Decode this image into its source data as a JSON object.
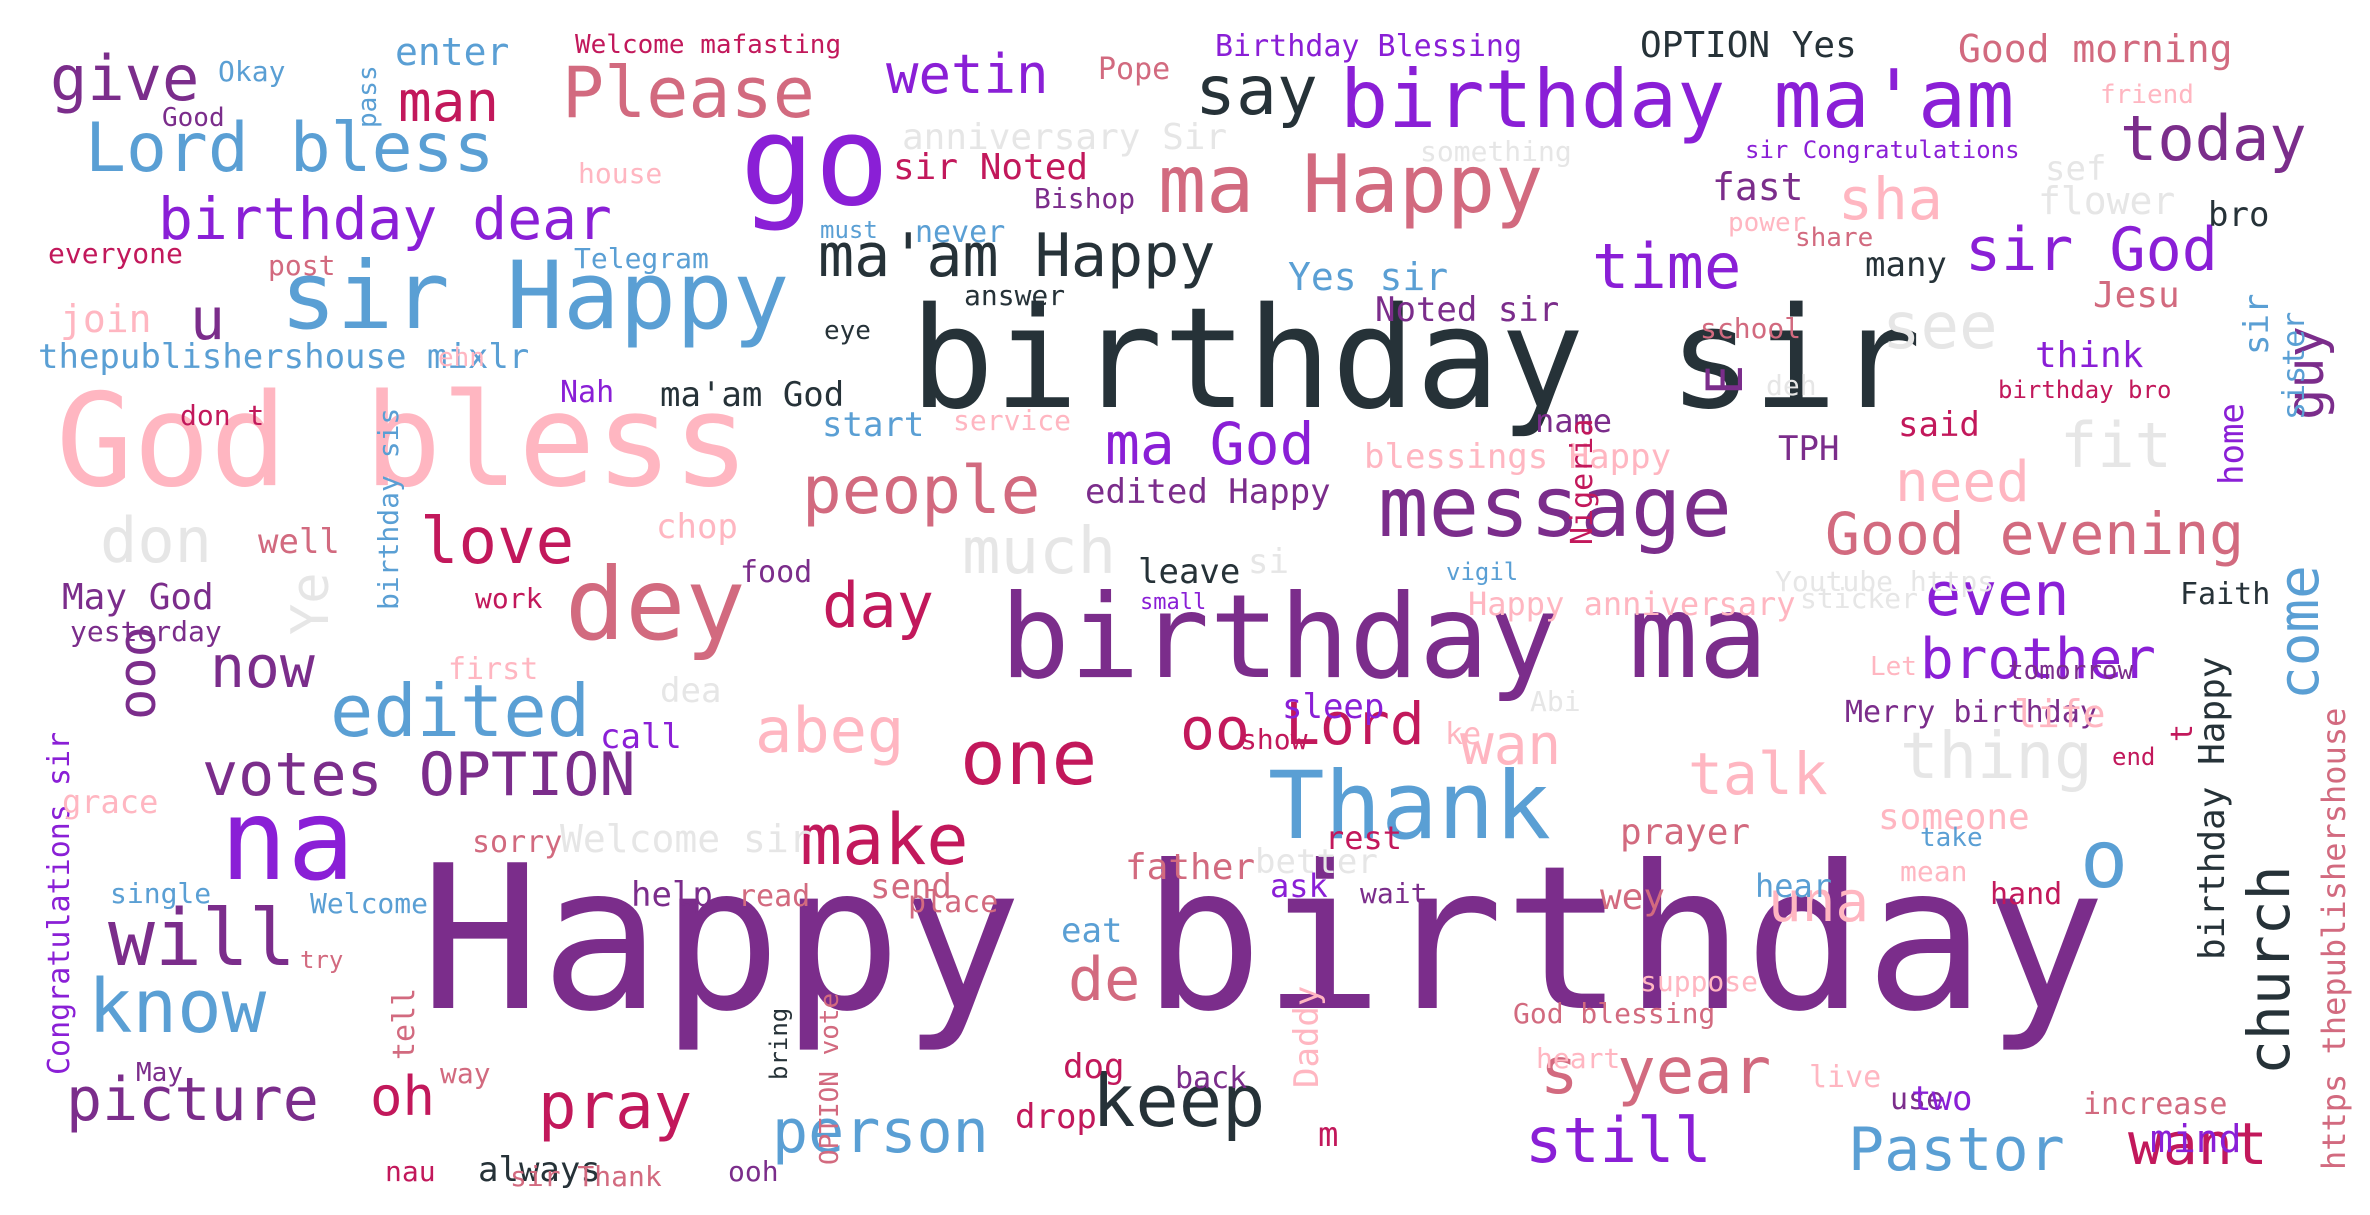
{
  "palette": {
    "purple_dark": "#7b2d8b",
    "purple": "#8a1fd6",
    "violet": "#9a22d8",
    "blue": "#5a9fd4",
    "rose": "#d26a7f",
    "crimson": "#c2185b",
    "pink_light": "#ffb6c1",
    "gray_light": "#e6e6e6",
    "charcoal": "#263238"
  },
  "words": [
    {
      "text": "Happy birthday",
      "color": "#7b2d8b"
    },
    {
      "text": "birthday sir",
      "color": "#263238"
    },
    {
      "text": "God bless",
      "color": "#ffb6c1"
    },
    {
      "text": "birthday ma",
      "color": "#7b2d8b"
    },
    {
      "text": "go",
      "color": "#8a1fd6"
    },
    {
      "text": "birthday ma'am",
      "color": "#8a1fd6"
    },
    {
      "text": "sir Happy",
      "color": "#5a9fd4"
    },
    {
      "text": "ma Happy",
      "color": "#d26a7f"
    },
    {
      "text": "message",
      "color": "#7b2d8b"
    },
    {
      "text": "Thank",
      "color": "#5a9fd4"
    },
    {
      "text": "na",
      "color": "#8a1fd6"
    },
    {
      "text": "dey",
      "color": "#d26a7f"
    },
    {
      "text": "Please",
      "color": "#d26a7f"
    },
    {
      "text": "Lord bless",
      "color": "#5a9fd4"
    },
    {
      "text": "birthday dear",
      "color": "#8a1fd6"
    },
    {
      "text": "ma'am Happy",
      "color": "#263238"
    },
    {
      "text": "edited",
      "color": "#5a9fd4"
    },
    {
      "text": "votes OPTION",
      "color": "#7b2d8b"
    },
    {
      "text": "keep",
      "color": "#263238"
    },
    {
      "text": "make",
      "color": "#c2185b"
    },
    {
      "text": "one",
      "color": "#c2185b"
    },
    {
      "text": "people",
      "color": "#d26a7f"
    },
    {
      "text": "will",
      "color": "#7b2d8b"
    },
    {
      "text": "know",
      "color": "#5a9fd4"
    },
    {
      "text": "picture",
      "color": "#7b2d8b"
    },
    {
      "text": "person",
      "color": "#5a9fd4"
    },
    {
      "text": "Pastor",
      "color": "#5a9fd4"
    },
    {
      "text": "s year",
      "color": "#d26a7f"
    },
    {
      "text": "still",
      "color": "#8a1fd6"
    },
    {
      "text": "Good evening",
      "color": "#d26a7f"
    },
    {
      "text": "church",
      "color": "#263238"
    },
    {
      "text": "come",
      "color": "#5a9fd4"
    },
    {
      "text": "sir God",
      "color": "#8a1fd6"
    },
    {
      "text": "today",
      "color": "#7b2d8b"
    },
    {
      "text": "wetin",
      "color": "#8a1fd6"
    },
    {
      "text": "say",
      "color": "#263238"
    },
    {
      "text": "give",
      "color": "#7b2d8b"
    },
    {
      "text": "man",
      "color": "#c2185b"
    },
    {
      "text": "time",
      "color": "#8a1fd6"
    },
    {
      "text": "ma God",
      "color": "#8a1fd6"
    },
    {
      "text": "love",
      "color": "#c2185b"
    },
    {
      "text": "day",
      "color": "#c2185b"
    },
    {
      "text": "now",
      "color": "#7b2d8b"
    },
    {
      "text": "abeg",
      "color": "#ffb6c1"
    },
    {
      "text": "oo",
      "color": "#c2185b"
    },
    {
      "text": "Lord",
      "color": "#c2185b"
    },
    {
      "text": "talk",
      "color": "#ffb6c1"
    },
    {
      "text": "thing",
      "color": "#e6e6e6"
    },
    {
      "text": "brother",
      "color": "#8a1fd6"
    },
    {
      "text": "even",
      "color": "#8a1fd6"
    },
    {
      "text": "o",
      "color": "#5a9fd4"
    },
    {
      "text": "want",
      "color": "#c2185b"
    },
    {
      "text": "pray",
      "color": "#c2185b"
    },
    {
      "text": "oh",
      "color": "#c2185b"
    },
    {
      "text": "de",
      "color": "#d26a7f"
    },
    {
      "text": "una",
      "color": "#ffb6c1"
    },
    {
      "text": "wan",
      "color": "#ffb6c1"
    },
    {
      "text": "much",
      "color": "#e6e6e6"
    },
    {
      "text": "don",
      "color": "#e6e6e6"
    },
    {
      "text": "see",
      "color": "#e6e6e6"
    },
    {
      "text": "fit",
      "color": "#e6e6e6"
    },
    {
      "text": "need",
      "color": "#ffb6c1"
    },
    {
      "text": "sha",
      "color": "#ffb6c1"
    },
    {
      "text": "u",
      "color": "#7b2d8b"
    },
    {
      "text": "guy",
      "color": "#7b2d8b"
    },
    {
      "text": "E",
      "color": "#7b2d8b"
    },
    {
      "text": "ooo",
      "color": "#7b2d8b"
    },
    {
      "text": "Ye",
      "color": "#e6e6e6"
    },
    {
      "text": "thepublishershouse mixlr",
      "color": "#5a9fd4"
    },
    {
      "text": "birthday Happy",
      "color": "#263238"
    },
    {
      "text": "https thepublishershouse",
      "color": "#d26a7f"
    },
    {
      "text": "Congratulations sir",
      "color": "#8a1fd6"
    },
    {
      "text": "OPTION Yes",
      "color": "#263238"
    },
    {
      "text": "Good morning",
      "color": "#d26a7f"
    },
    {
      "text": "Birthday Blessing",
      "color": "#8a1fd6"
    },
    {
      "text": "Welcome mafasting",
      "color": "#c2185b"
    },
    {
      "text": "enter",
      "color": "#5a9fd4"
    },
    {
      "text": "Okay",
      "color": "#5a9fd4"
    },
    {
      "text": "Good",
      "color": "#7b2d8b"
    },
    {
      "text": "pass",
      "color": "#5a9fd4"
    },
    {
      "text": "Pope",
      "color": "#d26a7f"
    },
    {
      "text": "friend",
      "color": "#ffb6c1"
    },
    {
      "text": "anniversary Sir",
      "color": "#e6e6e6"
    },
    {
      "text": "something",
      "color": "#e6e6e6"
    },
    {
      "text": "sir Congratulations",
      "color": "#8a1fd6"
    },
    {
      "text": "sef",
      "color": "#e6e6e6"
    },
    {
      "text": "house",
      "color": "#ffb6c1"
    },
    {
      "text": "sir Noted",
      "color": "#c2185b"
    },
    {
      "text": "fast",
      "color": "#7b2d8b"
    },
    {
      "text": "flower",
      "color": "#e6e6e6"
    },
    {
      "text": "bro",
      "color": "#263238"
    },
    {
      "text": "Bishop",
      "color": "#7b2d8b"
    },
    {
      "text": "never",
      "color": "#5a9fd4"
    },
    {
      "text": "must",
      "color": "#5a9fd4"
    },
    {
      "text": "power",
      "color": "#ffb6c1"
    },
    {
      "text": "share",
      "color": "#d26a7f"
    },
    {
      "text": "many",
      "color": "#263238"
    },
    {
      "text": "everyone",
      "color": "#c2185b"
    },
    {
      "text": "post",
      "color": "#d26a7f"
    },
    {
      "text": "Telegram",
      "color": "#5a9fd4"
    },
    {
      "text": "answer",
      "color": "#263238"
    },
    {
      "text": "Yes sir",
      "color": "#5a9fd4"
    },
    {
      "text": "Jesu",
      "color": "#d26a7f"
    },
    {
      "text": "join",
      "color": "#ffb6c1"
    },
    {
      "text": "Noted sir",
      "color": "#7b2d8b"
    },
    {
      "text": "school",
      "color": "#d26a7f"
    },
    {
      "text": "ehn",
      "color": "#ffb6c1"
    },
    {
      "text": "eye",
      "color": "#263238"
    },
    {
      "text": "think",
      "color": "#8a1fd6"
    },
    {
      "text": "sir",
      "color": "#5a9fd4"
    },
    {
      "text": "sister",
      "color": "#5a9fd4"
    },
    {
      "text": "deh",
      "color": "#e6e6e6"
    },
    {
      "text": "birthday bro",
      "color": "#c2185b"
    },
    {
      "text": "don t",
      "color": "#c2185b"
    },
    {
      "text": "Nah",
      "color": "#8a1fd6"
    },
    {
      "text": "ma'am God",
      "color": "#263238"
    },
    {
      "text": "start",
      "color": "#5a9fd4"
    },
    {
      "text": "service",
      "color": "#ffb6c1"
    },
    {
      "text": "name",
      "color": "#7b2d8b"
    },
    {
      "text": "said",
      "color": "#c2185b"
    },
    {
      "text": "TPH",
      "color": "#7b2d8b"
    },
    {
      "text": "blessings Happy",
      "color": "#ffb6c1"
    },
    {
      "text": "home",
      "color": "#8a1fd6"
    },
    {
      "text": "birthday sis",
      "color": "#5a9fd4"
    },
    {
      "text": "edited Happy",
      "color": "#7b2d8b"
    },
    {
      "text": "chop",
      "color": "#ffb6c1"
    },
    {
      "text": "well",
      "color": "#d26a7f"
    },
    {
      "text": "leave",
      "color": "#263238"
    },
    {
      "text": "si",
      "color": "#e6e6e6"
    },
    {
      "text": "vigil",
      "color": "#5a9fd4"
    },
    {
      "text": "Youtube https",
      "color": "#e6e6e6"
    },
    {
      "text": "sticker",
      "color": "#e6e6e6"
    },
    {
      "text": "Faith",
      "color": "#263238"
    },
    {
      "text": "work",
      "color": "#c2185b"
    },
    {
      "text": "May God",
      "color": "#7b2d8b"
    },
    {
      "text": "small",
      "color": "#8a1fd6"
    },
    {
      "text": "Happy anniversary",
      "color": "#ffb6c1"
    },
    {
      "text": "yesterday",
      "color": "#7b2d8b"
    },
    {
      "text": "dea",
      "color": "#e6e6e6"
    },
    {
      "text": "tomorrow",
      "color": "#7b2d8b"
    },
    {
      "text": "first",
      "color": "#ffb6c1"
    },
    {
      "text": "Let",
      "color": "#ffb6c1"
    },
    {
      "text": "sleep",
      "color": "#8a1fd6"
    },
    {
      "text": "call",
      "color": "#8a1fd6"
    },
    {
      "text": "show",
      "color": "#c2185b"
    },
    {
      "text": "Abi",
      "color": "#e6e6e6"
    },
    {
      "text": "Merry birthday",
      "color": "#7b2d8b"
    },
    {
      "text": "life",
      "color": "#ffb6c1"
    },
    {
      "text": "ke",
      "color": "#ffb6c1"
    },
    {
      "text": "end",
      "color": "#c2185b"
    },
    {
      "text": "t",
      "color": "#c2185b"
    },
    {
      "text": "better",
      "color": "#e6e6e6"
    },
    {
      "text": "ask",
      "color": "#8a1fd6"
    },
    {
      "text": "Nigeria",
      "color": "#c2185b"
    },
    {
      "text": "food",
      "color": "#7b2d8b"
    },
    {
      "text": "grace",
      "color": "#ffb6c1"
    },
    {
      "text": "Welcome sir",
      "color": "#e6e6e6"
    },
    {
      "text": "prayer",
      "color": "#d26a7f"
    },
    {
      "text": "someone",
      "color": "#ffb6c1"
    },
    {
      "text": "rest",
      "color": "#c2185b"
    },
    {
      "text": "send",
      "color": "#d26a7f"
    },
    {
      "text": "father",
      "color": "#d26a7f"
    },
    {
      "text": "wait",
      "color": "#7b2d8b"
    },
    {
      "text": "wey",
      "color": "#d26a7f"
    },
    {
      "text": "hear",
      "color": "#5a9fd4"
    },
    {
      "text": "mean",
      "color": "#ffb6c1"
    },
    {
      "text": "hand",
      "color": "#c2185b"
    },
    {
      "text": "sorry",
      "color": "#d26a7f"
    },
    {
      "text": "take",
      "color": "#5a9fd4"
    },
    {
      "text": "single",
      "color": "#5a9fd4"
    },
    {
      "text": "Welcome",
      "color": "#5a9fd4"
    },
    {
      "text": "help",
      "color": "#7b2d8b"
    },
    {
      "text": "read",
      "color": "#d26a7f"
    },
    {
      "text": "place",
      "color": "#d26a7f"
    },
    {
      "text": "eat",
      "color": "#5a9fd4"
    },
    {
      "text": "try",
      "color": "#d26a7f"
    },
    {
      "text": "tell",
      "color": "#d26a7f"
    },
    {
      "text": "suppose",
      "color": "#ffb6c1"
    },
    {
      "text": "God blessing",
      "color": "#d26a7f"
    },
    {
      "text": "dog",
      "color": "#c2185b"
    },
    {
      "text": "heart",
      "color": "#ffb6c1"
    },
    {
      "text": "May",
      "color": "#7b2d8b"
    },
    {
      "text": "way",
      "color": "#d26a7f"
    },
    {
      "text": "bring",
      "color": "#263238"
    },
    {
      "text": "drop",
      "color": "#c2185b"
    },
    {
      "text": "back",
      "color": "#7b2d8b"
    },
    {
      "text": "Daddy",
      "color": "#ffb6c1"
    },
    {
      "text": "live",
      "color": "#ffb6c1"
    },
    {
      "text": "use",
      "color": "#7b2d8b"
    },
    {
      "text": "two",
      "color": "#8a1fd6"
    },
    {
      "text": "increase",
      "color": "#d26a7f"
    },
    {
      "text": "mind",
      "color": "#8a1fd6"
    },
    {
      "text": "m",
      "color": "#c2185b"
    },
    {
      "text": "always",
      "color": "#263238"
    },
    {
      "text": "nau",
      "color": "#c2185b"
    },
    {
      "text": "sir Thank",
      "color": "#d26a7f"
    },
    {
      "text": "ooh",
      "color": "#7b2d8b"
    },
    {
      "text": "OPTION vote",
      "color": "#d26a7f"
    }
  ]
}
